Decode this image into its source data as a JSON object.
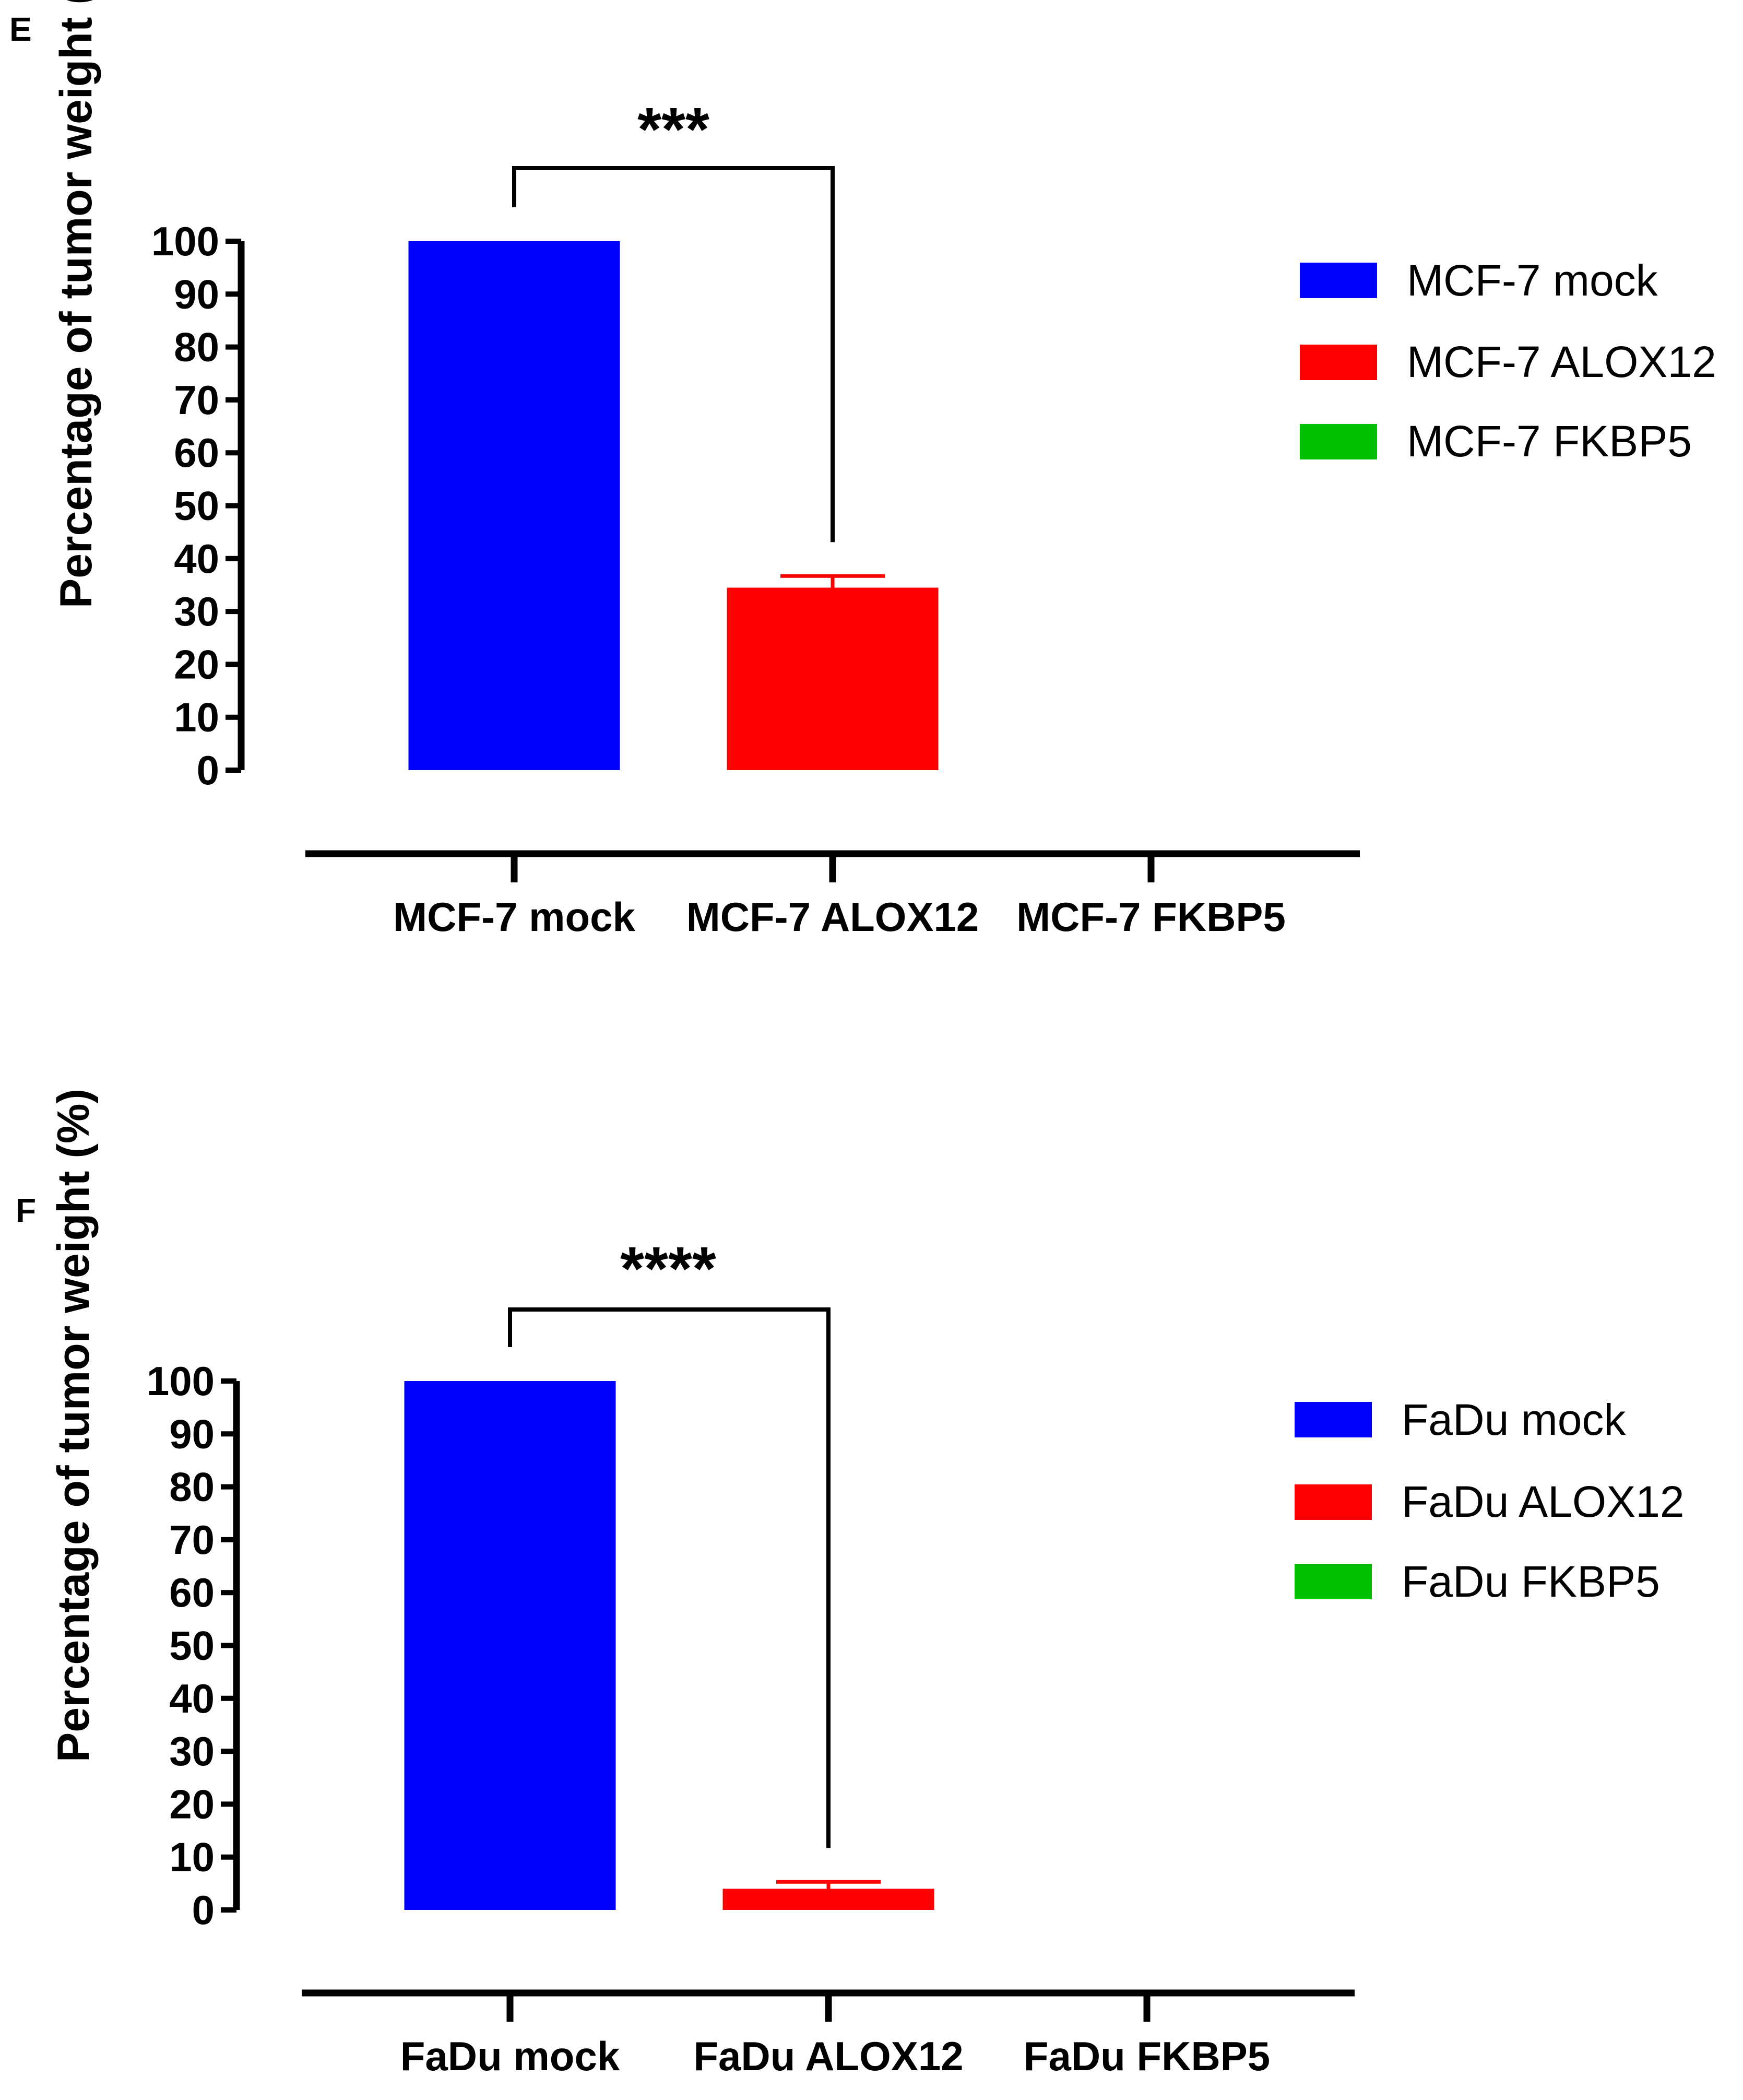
{
  "chart_data": [
    {
      "type": "bar",
      "panel_label": "E",
      "ylabel": "Percentage of tumor weight (%)",
      "xlabel": "",
      "ylim": [
        0,
        100
      ],
      "yticks": [
        "0",
        "10",
        "20",
        "30",
        "40",
        "50",
        "60",
        "70",
        "80",
        "90",
        "100"
      ],
      "categories": [
        "MCF-7 mock",
        "MCF-7 ALOX12",
        "MCF-7 FKBP5"
      ],
      "values": [
        100,
        34.5,
        0
      ],
      "errors": [
        0,
        2.2,
        0
      ],
      "colors": [
        "#0000ff",
        "#ff0000",
        "#00c000"
      ],
      "significance": {
        "from": 0,
        "to": 1,
        "label": "***"
      },
      "legend": {
        "position": "right",
        "entries": [
          {
            "label": "MCF-7 mock",
            "color": "#0000ff"
          },
          {
            "label": "MCF-7 ALOX12",
            "color": "#ff0000"
          },
          {
            "label": "MCF-7 FKBP5",
            "color": "#00c000"
          }
        ]
      }
    },
    {
      "type": "bar",
      "panel_label": "F",
      "ylabel": "Percentage of tumor weight  (%)",
      "xlabel": "",
      "ylim": [
        0,
        100
      ],
      "yticks": [
        "0",
        "10",
        "20",
        "30",
        "40",
        "50",
        "60",
        "70",
        "80",
        "90",
        "100"
      ],
      "categories": [
        "FaDu mock",
        "FaDu ALOX12",
        "FaDu FKBP5"
      ],
      "values": [
        100,
        4,
        0
      ],
      "errors": [
        0,
        1.3,
        0
      ],
      "colors": [
        "#0000ff",
        "#ff0000",
        "#00c000"
      ],
      "significance": {
        "from": 0,
        "to": 1,
        "label": "****"
      },
      "legend": {
        "position": "right",
        "entries": [
          {
            "label": "FaDu mock",
            "color": "#0000ff"
          },
          {
            "label": "FaDu ALOX12",
            "color": "#ff0000"
          },
          {
            "label": "FaDu FKBP5",
            "color": "#00c000"
          }
        ]
      }
    }
  ]
}
